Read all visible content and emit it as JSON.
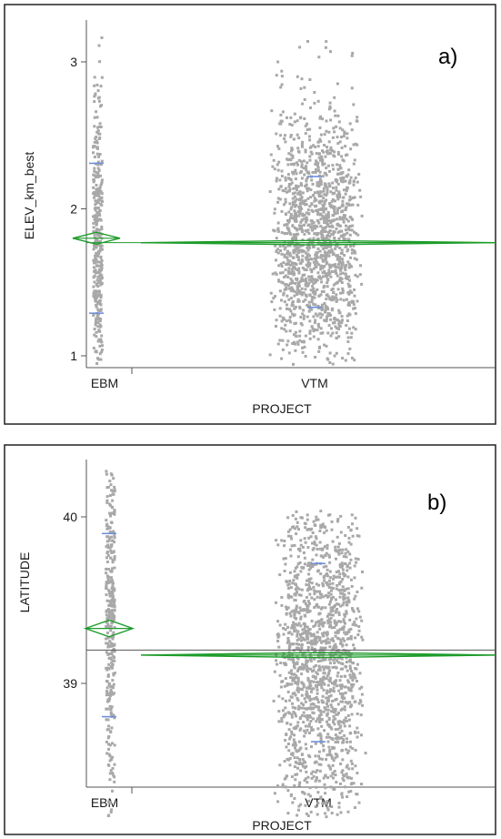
{
  "chart_data": [
    {
      "type": "scatter",
      "panel_label": "a)",
      "xlabel": "PROJECT",
      "ylabel": "ELEV_km_best",
      "categories": [
        "EBM",
        "VTM"
      ],
      "yticks": [
        "1",
        "2",
        "3"
      ],
      "ylim": [
        0.93,
        3.3
      ],
      "grand_mean": 1.77,
      "groups": [
        {
          "name": "EBM",
          "mean": 1.8,
          "ci_low": 1.76,
          "ci_high": 1.84,
          "std_low": 1.29,
          "std_high": 2.31,
          "ymin": 0.95,
          "ymax": 3.2,
          "spread": 0.06
        },
        {
          "name": "VTM",
          "mean": 1.77,
          "ci_low": 1.755,
          "ci_high": 1.785,
          "std_low": 1.33,
          "std_high": 2.22,
          "ymin": 0.95,
          "ymax": 3.15,
          "spread": 0.4
        }
      ],
      "colors": {
        "points": "#a8a8a8",
        "diamond": "#1e9c2a",
        "stdmark": "#6f8fdc",
        "axis": "#555555"
      }
    },
    {
      "type": "scatter",
      "panel_label": "b)",
      "xlabel": "PROJECT",
      "ylabel": "LATITUDE",
      "categories": [
        "EBM",
        "VTM"
      ],
      "yticks": [
        "39",
        "40"
      ],
      "ylim": [
        38.15,
        40.38
      ],
      "grand_mean": 39.2,
      "groups": [
        {
          "name": "EBM",
          "mean": 39.33,
          "ci_low": 39.28,
          "ci_high": 39.38,
          "std_low": 38.8,
          "std_high": 39.9,
          "ymin": 38.2,
          "ymax": 40.3,
          "spread": 0.06
        },
        {
          "name": "VTM",
          "mean": 39.17,
          "ci_low": 39.155,
          "ci_high": 39.185,
          "std_low": 38.65,
          "std_high": 39.72,
          "ymin": 38.2,
          "ymax": 40.05,
          "spread": 0.4
        }
      ],
      "colors": {
        "points": "#a8a8a8",
        "diamond": "#1e9c2a",
        "stdmark": "#6f8fdc",
        "axis": "#555555"
      }
    }
  ]
}
